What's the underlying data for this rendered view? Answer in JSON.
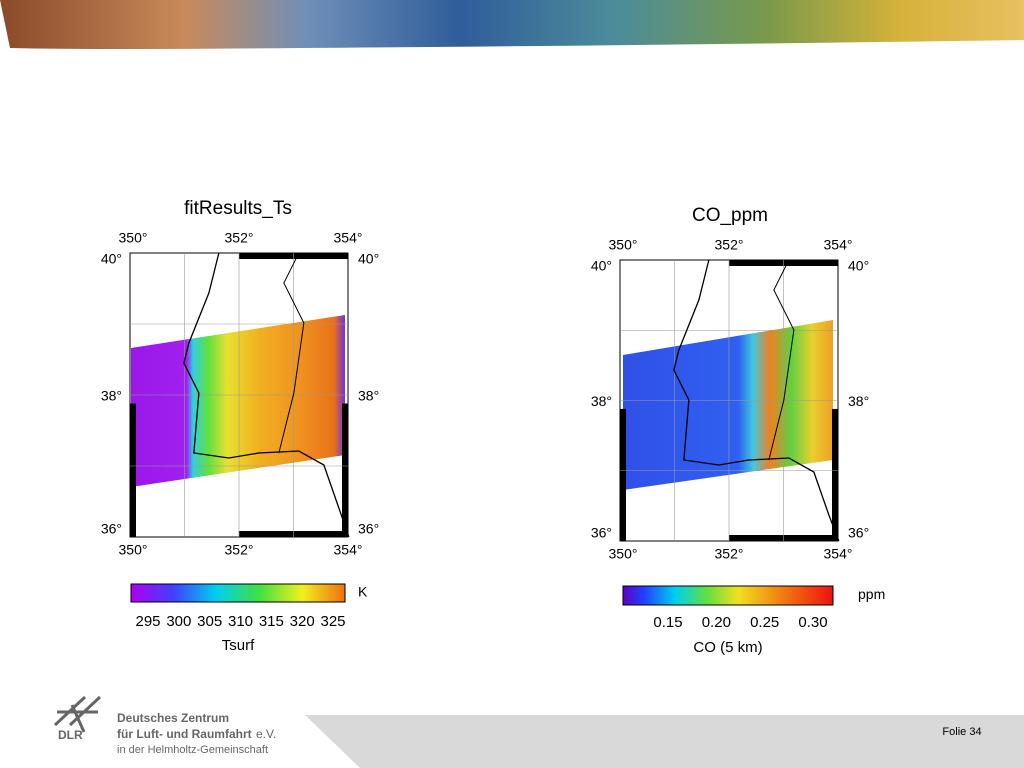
{
  "slide": {
    "panels": [
      {
        "title": "fitResults_Ts",
        "lon_labels": [
          "350°",
          "352°",
          "354°"
        ],
        "lat_labels": [
          "40°",
          "38°",
          "36°"
        ],
        "colorbar": {
          "ticks": [
            "295",
            "300",
            "305",
            "310",
            "315",
            "320",
            "325"
          ],
          "unit": "K",
          "label": "Tsurf"
        }
      },
      {
        "title": "CO_ppm",
        "lon_labels": [
          "350°",
          "352°",
          "354°"
        ],
        "lat_labels": [
          "40°",
          "38°",
          "36°"
        ],
        "colorbar": {
          "ticks": [
            "0.15",
            "0.20",
            "0.25",
            "0.30"
          ],
          "unit": "ppm",
          "label": "CO (5 km)"
        }
      }
    ]
  },
  "footer": {
    "logo_text": "DLR",
    "org_line1": "Deutsches Zentrum",
    "org_line2": "für Luft- und Raumfahrt",
    "org_suffix": "e.V.",
    "org_line3": "in der Helmholtz-Gemeinschaft",
    "slide_number": "Folie 34"
  }
}
